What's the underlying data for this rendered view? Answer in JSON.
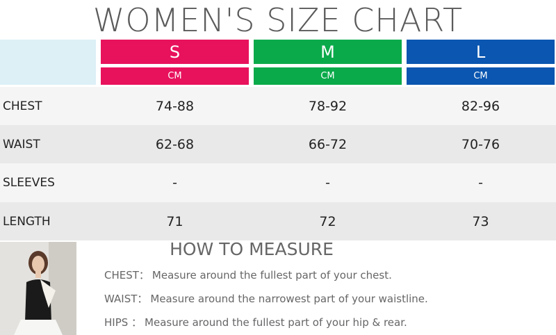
{
  "header": {
    "title": "WOMEN'S SIZE CHART"
  },
  "table": {
    "columns": [
      {
        "size": "S",
        "unit": "CM"
      },
      {
        "size": "M",
        "unit": "CM"
      },
      {
        "size": "L",
        "unit": "CM"
      }
    ],
    "rows": [
      [
        "CHEST",
        "74-88",
        "78-92",
        "82-96"
      ],
      [
        "WAIST",
        "62-68",
        "66-72",
        "70-76"
      ],
      [
        "SLEEVES",
        "-",
        "-",
        "-"
      ],
      [
        "LENGTH",
        "71",
        "72",
        "73"
      ]
    ]
  },
  "measure": {
    "title": "HOW TO MEASURE",
    "items": [
      {
        "label": "CHEST：",
        "text": "Measure around the fullest part of your chest."
      },
      {
        "label": "WAIST：",
        "text": "Measure around the narrowest part of your waistline."
      },
      {
        "label": "HIPS ：",
        "text": "Measure around the fullest part of your hip & rear."
      }
    ]
  }
}
